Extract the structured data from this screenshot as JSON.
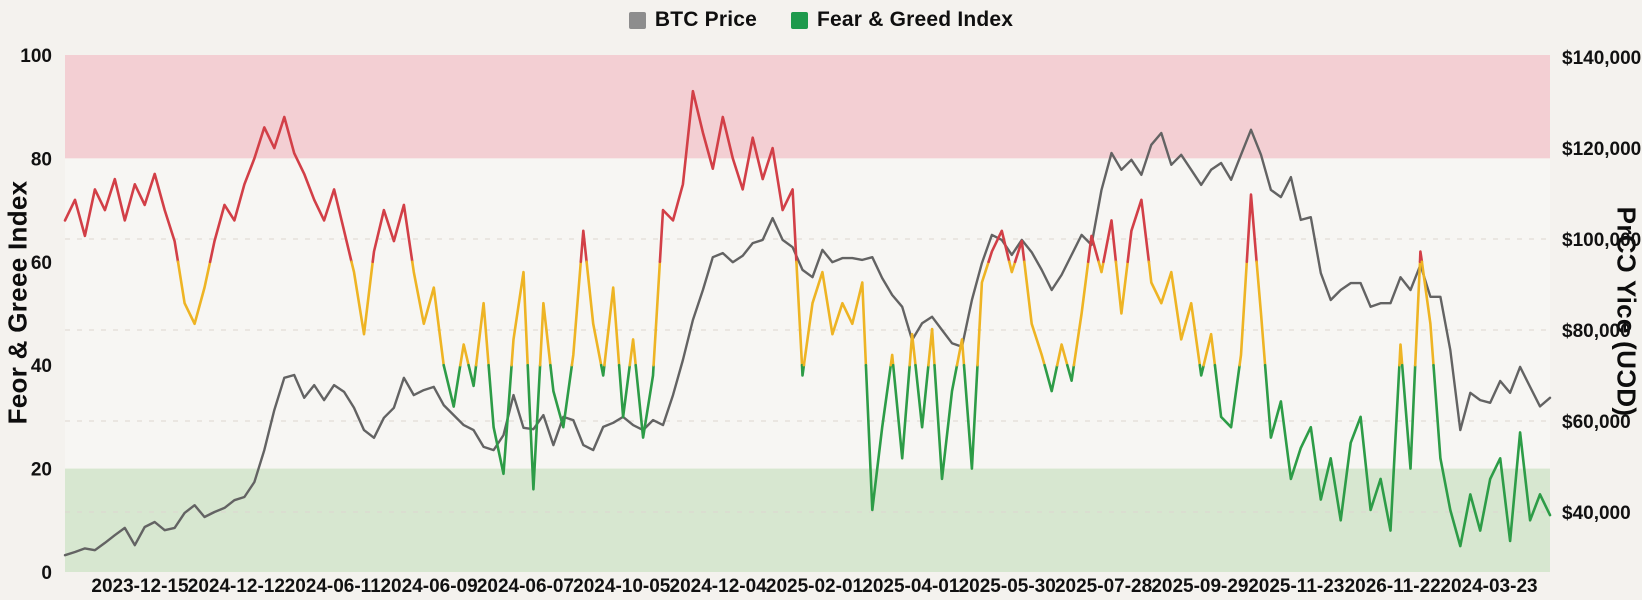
{
  "legend": {
    "items": [
      {
        "label": "BTC Price",
        "color": "#8d8d8d"
      },
      {
        "label": "Fear & Greed Index",
        "color": "#1e9a4c"
      }
    ]
  },
  "axes": {
    "left": {
      "title": "Feor & Greee Index",
      "ticks": [
        "100",
        "80",
        "60",
        "40",
        "20",
        "0"
      ],
      "tick_values": [
        100,
        80,
        60,
        40,
        20,
        0
      ]
    },
    "right": {
      "title": "PrCƆ Yice (UƆD)",
      "ticks": [
        "$140,000",
        "$120,000",
        "$100,000",
        "$80,000",
        "$60,000",
        "$40,000"
      ],
      "tick_values": [
        140000,
        120000,
        100000,
        80000,
        60000,
        40000
      ]
    },
    "x": {
      "labels": [
        "2023-12-15",
        "2024-12-12",
        "2024-06-11",
        "2024-06-09",
        "2024-06-07",
        "2024-10-05",
        "2024-12-04",
        "2025-02-01",
        "2025-04-01",
        "2025-05-30",
        "2025-07-28",
        "2025-09-29",
        "2025-11-23",
        "2026-11-22",
        "2024-03-23"
      ]
    }
  },
  "colors": {
    "background": "#f4f2ee",
    "plot_middle": "#f7f6f3",
    "grid": "#dcd6cf",
    "text": "#111111"
  },
  "chart_data": {
    "type": "line",
    "title": "",
    "x_tick_labels": [
      "2023-12-15",
      "2024-12-12",
      "2024-06-11",
      "2024-06-09",
      "2024-06-07",
      "2024-10-05",
      "2024-12-04",
      "2025-02-01",
      "2025-04-01",
      "2025-05-30",
      "2025-07-28",
      "2025-09-29",
      "2025-11-23",
      "2026-11-22",
      "2024-03-23"
    ],
    "y_left_range": [
      0,
      100
    ],
    "y_right_tick_range": [
      40000,
      140000
    ],
    "legend_position": "top-center",
    "grid": {
      "dashed": true,
      "at_right_ticks": [
        100000,
        80000,
        60000,
        40000
      ]
    },
    "bands": [
      {
        "axis": "left",
        "from": 80,
        "to": 100,
        "color": "#f3cfd3",
        "meaning": "extreme greed zone"
      },
      {
        "axis": "left",
        "from": 20,
        "to": 80,
        "color": "#f7f6f3",
        "meaning": "neutral zone"
      },
      {
        "axis": "left",
        "from": 0,
        "to": 20,
        "color": "#d7e7d0",
        "meaning": "extreme fear zone"
      }
    ],
    "fg_thresholds": {
      "low_max": 40,
      "high_min": 60
    },
    "series": [
      {
        "name": "BTC Price",
        "axis": "right",
        "color": "#636363",
        "values": [
          30500,
          31200,
          32000,
          31600,
          33200,
          34900,
          36500,
          32700,
          36700,
          37800,
          36000,
          36500,
          39800,
          41500,
          38900,
          40000,
          40900,
          42600,
          43300,
          46600,
          53600,
          62400,
          69500,
          70100,
          65100,
          67900,
          64600,
          67900,
          66400,
          62900,
          58000,
          56300,
          60700,
          62900,
          69500,
          65700,
          66800,
          67500,
          63500,
          61300,
          59100,
          58000,
          54300,
          53600,
          56900,
          65700,
          58500,
          58200,
          61300,
          54700,
          60900,
          60200,
          54700,
          53600,
          58700,
          59600,
          60900,
          59100,
          58000,
          60200,
          59100,
          65700,
          73400,
          82200,
          88800,
          96000,
          96900,
          94900,
          96300,
          99100,
          99800,
          104600,
          99800,
          98200,
          93200,
          91600,
          97600,
          94900,
          95800,
          95800,
          95400,
          96000,
          91400,
          87700,
          85100,
          77800,
          81500,
          82900,
          80000,
          77100,
          76300,
          86600,
          94700,
          100900,
          99800,
          96500,
          99800,
          97100,
          93200,
          88800,
          92100,
          96500,
          100900,
          98700,
          110800,
          118900,
          115200,
          117400,
          114100,
          120700,
          123300,
          116300,
          118500,
          115200,
          111900,
          115200,
          116700,
          113000,
          118500,
          124000,
          118500,
          110800,
          109200,
          113600,
          104200,
          104800,
          92500,
          86600,
          88800,
          90300,
          90300,
          85100,
          85900,
          85900,
          91600,
          88800,
          94300,
          87300,
          87300,
          75600,
          58000,
          66200,
          64600,
          64000,
          68800,
          66200,
          71900,
          67500,
          63200,
          65100
        ]
      },
      {
        "name": "Fear & Greed Index",
        "axis": "left",
        "colors": {
          "low": "#2d9c47",
          "mid": "#eeb424",
          "high": "#d23f47"
        },
        "values": [
          68,
          72,
          65,
          74,
          70,
          76,
          68,
          75,
          71,
          77,
          70,
          64,
          52,
          48,
          55,
          64,
          71,
          68,
          75,
          80,
          86,
          82,
          88,
          81,
          77,
          72,
          68,
          74,
          66,
          58,
          46,
          62,
          70,
          64,
          71,
          58,
          48,
          55,
          40,
          32,
          44,
          36,
          52,
          28,
          19,
          45,
          58,
          16,
          52,
          35,
          28,
          42,
          66,
          48,
          38,
          55,
          30,
          45,
          26,
          38,
          70,
          68,
          75,
          93,
          85,
          78,
          88,
          80,
          74,
          84,
          76,
          82,
          70,
          74,
          38,
          52,
          58,
          46,
          52,
          48,
          56,
          12,
          28,
          42,
          22,
          46,
          28,
          47,
          18,
          35,
          45,
          20,
          56,
          62,
          66,
          58,
          64,
          48,
          42,
          35,
          44,
          37,
          50,
          65,
          58,
          68,
          50,
          66,
          72,
          56,
          52,
          58,
          45,
          52,
          38,
          46,
          30,
          28,
          42,
          73,
          50,
          26,
          33,
          18,
          24,
          28,
          14,
          22,
          10,
          25,
          30,
          12,
          18,
          8,
          44,
          20,
          62,
          48,
          22,
          12,
          5,
          15,
          8,
          18,
          22,
          6,
          27,
          10,
          15,
          11
        ]
      }
    ]
  }
}
